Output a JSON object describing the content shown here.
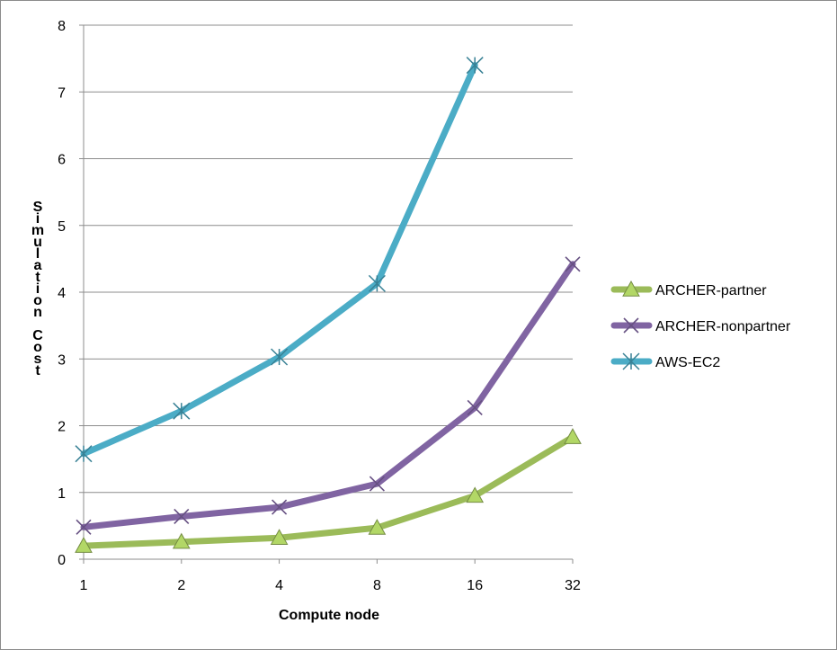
{
  "chart_data": {
    "type": "line",
    "title": "",
    "xlabel": "Compute node",
    "ylabel": "Simulation Cost",
    "categories": [
      "1",
      "2",
      "4",
      "8",
      "16",
      "32"
    ],
    "ylim": [
      0,
      8
    ],
    "yticks": [
      "0",
      "1",
      "2",
      "3",
      "4",
      "5",
      "6",
      "7",
      "8"
    ],
    "grid": true,
    "legend_position": "right",
    "series": [
      {
        "name": "ARCHER-partner",
        "color": "#9bbb59",
        "marker": "triangle",
        "values": [
          0.2,
          0.26,
          0.32,
          0.47,
          0.95,
          1.83
        ]
      },
      {
        "name": "ARCHER-nonpartner",
        "color": "#8064a2",
        "marker": "x",
        "values": [
          0.48,
          0.64,
          0.78,
          1.13,
          2.27,
          4.42
        ]
      },
      {
        "name": "AWS-EC2",
        "color": "#4bacc6",
        "marker": "star",
        "values": [
          1.58,
          2.22,
          3.03,
          4.13,
          7.4,
          null
        ]
      }
    ]
  }
}
